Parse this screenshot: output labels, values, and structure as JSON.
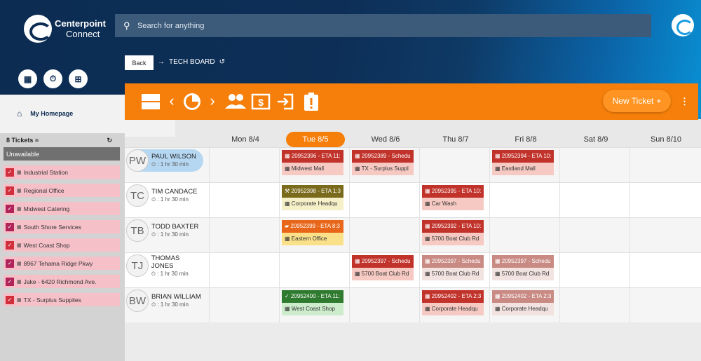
{
  "brand": {
    "name_line1": "Centerpoint",
    "name_line2": "Connect"
  },
  "search": {
    "placeholder": "Search for anything"
  },
  "nav": {
    "homepage_label": "My Homepage"
  },
  "breadcrumb": {
    "back_label": "Back",
    "current": "TECH BOARD"
  },
  "toolbar": {
    "new_ticket_label": "New Ticket",
    "plus": "+"
  },
  "sidebar": {
    "count_label": "8 Tickets",
    "unavailable_label": "Unavailable",
    "items": [
      {
        "label": "Industrial Station",
        "color": "#d12f3c"
      },
      {
        "label": "Regional Office",
        "color": "#d12f3c"
      },
      {
        "label": "Midwest Catering",
        "color": "#b0245a"
      },
      {
        "label": "South Shore Services",
        "color": "#b0245a"
      },
      {
        "label": "West Coast Shop",
        "color": "#d12f3c"
      },
      {
        "label": "8967 Tehama Ridge Pkwy",
        "color": "#b0245a"
      },
      {
        "label": "Jake - 6420 Richmond Ave.",
        "color": "#b0245a"
      },
      {
        "label": "TX - Surplus Supplies",
        "color": "#d12f3c"
      }
    ]
  },
  "days": [
    "Mon 8/4",
    "Tue 8/5",
    "Wed 8/6",
    "Thu 8/7",
    "Fri 8/8",
    "Sat 8/9",
    "Sun 8/10"
  ],
  "active_day": "Tue 8/5",
  "techs": [
    {
      "initials": "PW",
      "name": "PAUL WILSON",
      "duration": ": 1 hr 30 min"
    },
    {
      "initials": "TC",
      "name": "TIM CANDACE",
      "duration": ": 1 hr 30 min"
    },
    {
      "initials": "TB",
      "name": "TODD BAXTER",
      "duration": ": 1 hr 30 min"
    },
    {
      "initials": "TJ",
      "name": "THOMAS JONES",
      "duration": ": 1 hr 30 min"
    },
    {
      "initials": "BW",
      "name": "BRIAN WILLIAM",
      "duration": ": 1 hr 30 min"
    }
  ],
  "tickets": [
    {
      "tech": 0,
      "day": 1,
      "icon": "calendar-icon",
      "title": "20952396 - ETA 11:",
      "location": "Midwest Mall",
      "top_color": "#c0322a",
      "bottom_color": "#f6c9c2"
    },
    {
      "tech": 0,
      "day": 2,
      "icon": "calendar-icon",
      "title": "20952389 - Schedu",
      "location": "TX - Surplus Suppl",
      "top_color": "#c0322a",
      "bottom_color": "#f6c9c2"
    },
    {
      "tech": 0,
      "day": 4,
      "icon": "calendar-icon",
      "title": "20952394 - ETA 10:",
      "location": "Eastland Mall",
      "top_color": "#c0322a",
      "bottom_color": "#f6c9c2"
    },
    {
      "tech": 1,
      "day": 1,
      "icon": "wrench-icon",
      "title": "20952398 - ETA 1:3",
      "location": "Corporate Headqu",
      "top_color": "#7a6a1c",
      "bottom_color": "#f5f0c8"
    },
    {
      "tech": 1,
      "day": 3,
      "icon": "calendar-icon",
      "title": "20952395 - ETA 10:",
      "location": "Car Wash",
      "top_color": "#c0322a",
      "bottom_color": "#f6c9c2"
    },
    {
      "tech": 2,
      "day": 1,
      "icon": "truck-icon",
      "title": "20952399 - ETA 8:3",
      "location": "Eastern Office",
      "top_color": "#e8661a",
      "bottom_color": "#fbe08a"
    },
    {
      "tech": 2,
      "day": 3,
      "icon": "calendar-icon",
      "title": "20952392 - ETA 10:",
      "location": "5700 Boat Club Rd",
      "top_color": "#c0322a",
      "bottom_color": "#f6c9c2"
    },
    {
      "tech": 3,
      "day": 2,
      "icon": "calendar-icon",
      "title": "20952397 - Schedu",
      "location": "5700 Boat Club Rd",
      "top_color": "#c0322a",
      "bottom_color": "#f6c9c2"
    },
    {
      "tech": 3,
      "day": 3,
      "icon": "calendar-icon",
      "title": "20952397 - Schedu",
      "location": "5700 Boat Club Rd",
      "top_color": "#c98a84",
      "bottom_color": "#f3e3e0"
    },
    {
      "tech": 3,
      "day": 4,
      "icon": "calendar-icon",
      "title": "20952397 - Schedu",
      "location": "5700 Boat Club Rd",
      "top_color": "#c98a84",
      "bottom_color": "#f3e3e0"
    },
    {
      "tech": 4,
      "day": 1,
      "icon": "check-icon",
      "title": "20952400 - ETA 11:",
      "location": "West Coast Shop",
      "top_color": "#2e7a2e",
      "bottom_color": "#cdeccb"
    },
    {
      "tech": 4,
      "day": 3,
      "icon": "calendar-icon",
      "title": "20952402 - ETA 2:3",
      "location": "Corporate Headqu",
      "top_color": "#c0322a",
      "bottom_color": "#f6c9c2"
    },
    {
      "tech": 4,
      "day": 4,
      "icon": "calendar-icon",
      "title": "20952402 - ETA 2:3",
      "location": "Corporate Headqu",
      "top_color": "#c98a84",
      "bottom_color": "#f3e3e0"
    }
  ]
}
